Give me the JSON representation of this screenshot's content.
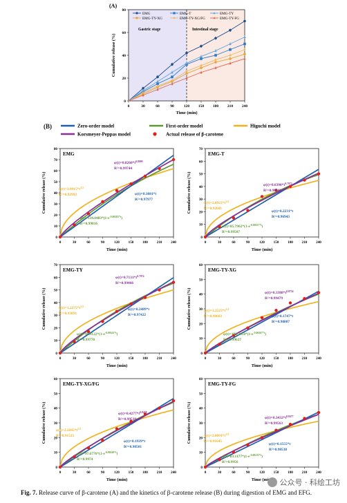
{
  "chart_data": [
    {
      "id": "A",
      "type": "line",
      "panel_label": "(A)",
      "xlabel": "Time (min)",
      "ylabel": "Cumulative release (%)",
      "x": [
        0,
        30,
        60,
        90,
        120,
        150,
        180,
        210,
        240
      ],
      "xticks": [
        0,
        30,
        60,
        90,
        120,
        150,
        180,
        210,
        240
      ],
      "ylim": [
        0,
        80
      ],
      "yticks": [
        0,
        20,
        40,
        60,
        80
      ],
      "stage_divider_x": 120,
      "regions": [
        {
          "label": "Gastric stage",
          "from": 0,
          "to": 120,
          "color": "#e7e4f8"
        },
        {
          "label": "Intestinal stage",
          "from": 120,
          "to": 240,
          "color": "#fbe9e4"
        }
      ],
      "series": [
        {
          "name": "EMG",
          "color": "#1f4e8c",
          "marker": "circle",
          "values": [
            0,
            11,
            21,
            32,
            42,
            48,
            55,
            62,
            70
          ]
        },
        {
          "name": "EMG-T",
          "color": "#2e78c8",
          "marker": "square",
          "values": [
            0,
            8,
            15,
            21,
            32,
            37,
            40,
            45,
            50
          ]
        },
        {
          "name": "EMG-TY",
          "color": "#5fa3e0",
          "marker": "triangle",
          "values": [
            0,
            9,
            17,
            25,
            33,
            39,
            44,
            50,
            56
          ]
        },
        {
          "name": "EMG-TY-XG",
          "color": "#e5a73a",
          "marker": "circle",
          "values": [
            0,
            6,
            12,
            17,
            24,
            29,
            34,
            37,
            41
          ]
        },
        {
          "name": "EMG-TY-XG/FG",
          "color": "#f0b65f",
          "marker": "diamond",
          "values": [
            0,
            7,
            13,
            18,
            26,
            31,
            36,
            40,
            45
          ]
        },
        {
          "name": "EMG-TY-FG",
          "color": "#e0684b",
          "marker": "triangle",
          "values": [
            0,
            5,
            10,
            15,
            20,
            25,
            29,
            33,
            37
          ]
        }
      ]
    },
    {
      "id": "B-EMG",
      "type": "line",
      "title": "EMG",
      "xlabel": "Time (min)",
      "ylabel": "Cumulative release (%)",
      "xticks": [
        0,
        30,
        60,
        90,
        120,
        150,
        180,
        210,
        240
      ],
      "ylim": [
        0,
        80
      ],
      "yticks": [
        0,
        10,
        20,
        30,
        40,
        50,
        60,
        70,
        80
      ],
      "actual": {
        "x": [
          0,
          30,
          60,
          90,
          120,
          150,
          180,
          210,
          240
        ],
        "y": [
          0,
          11,
          21,
          32,
          42,
          48,
          55,
          62,
          70
        ]
      },
      "models": {
        "zero_k": 0.3081,
        "first_a": 134.0483,
        "first_k": 0.00281,
        "higuchi_k": 3.9915,
        "kp_k": 0.8268,
        "kp_n": 0.8099
      },
      "equations": {
        "kp": {
          "text": "φ(t)=0.8268*t",
          "sup": "0.8099",
          "r2": "R²=0.99744"
        },
        "higuchi": {
          "text": "φ(t)=3.9915*t",
          "sup": "1/2",
          "r2": "R²=0.92992"
        },
        "zero": {
          "text": "φ(t)=0.3081*t",
          "sup": "",
          "r2": "R²=0.97977"
        },
        "first": {
          "text": "φ(t)=134.0483*(1-e",
          "sup": "-0.00281*t",
          "tail": ")",
          "r2": "R²=0.99816"
        }
      }
    },
    {
      "id": "B-EMG-T",
      "type": "line",
      "title": "EMG-T",
      "xlabel": "Time (min)",
      "ylabel": "Cumulative release (%)",
      "xticks": [
        0,
        30,
        60,
        90,
        120,
        150,
        180,
        210,
        240
      ],
      "ylim": [
        0,
        70
      ],
      "yticks": [
        0,
        10,
        20,
        30,
        40,
        50,
        60,
        70
      ],
      "actual": {
        "x": [
          0,
          30,
          60,
          90,
          120,
          150,
          180,
          210,
          240
        ],
        "y": [
          0,
          8,
          15,
          21,
          32,
          37,
          40,
          45,
          50
        ]
      },
      "models": {
        "zero_k": 0.2231,
        "first_a": 85.7962,
        "first_k": 0.00357,
        "higuchi_k": 2.8923,
        "kp_k": 0.6398,
        "kp_n": 0.7972
      },
      "equations": {
        "kp": {
          "text": "φ(t)=0.6398*t",
          "sup": "0.7972",
          "r2": "R²=0.98946"
        },
        "higuchi": {
          "text": "φ(t)=2.8923*t",
          "sup": "1/2",
          "r2": "R²=0.92601"
        },
        "zero": {
          "text": "φ(t)=0.2231*t",
          "sup": "",
          "r2": "R²=0.96943"
        },
        "first": {
          "text": "φ(t)=85.7962*(1-e",
          "sup": "-0.00357*t",
          "tail": ")",
          "r2": "R²=0.99507"
        }
      }
    },
    {
      "id": "B-EMG-TY",
      "type": "line",
      "title": "EMG-TY",
      "xlabel": "Time (min)",
      "ylabel": "Cumulative release (%)",
      "xticks": [
        0,
        30,
        60,
        90,
        120,
        150,
        180,
        210,
        240
      ],
      "ylim": [
        0,
        70
      ],
      "yticks": [
        0,
        10,
        20,
        30,
        40,
        50,
        60,
        70
      ],
      "actual": {
        "x": [
          0,
          30,
          60,
          90,
          120,
          150,
          180,
          210,
          240
        ],
        "y": [
          0,
          9,
          17,
          25,
          33,
          39,
          44,
          50,
          56
        ]
      },
      "models": {
        "zero_k": 0.2489,
        "first_a": 98.9122,
        "first_k": 0.00341,
        "higuchi_k": 3.2275,
        "kp_k": 0.7131,
        "kp_n": 0.7974
      },
      "equations": {
        "kp": {
          "text": "φ(t)=0.7131*t",
          "sup": "0.7974",
          "r2": "R²=0.99466"
        },
        "higuchi": {
          "text": "φ(t)=3.2275*t",
          "sup": "1/2",
          "r2": "R²=0.93891"
        },
        "zero": {
          "text": "φ(t)=0.2489*t",
          "sup": "",
          "r2": "R²=0.97422"
        },
        "first": {
          "text": "φ(t)=98.9122*(1-e",
          "sup": "-0.00341*t",
          "tail": ")",
          "r2": "R²=0.99778"
        }
      }
    },
    {
      "id": "B-EMG-TY-XG",
      "type": "line",
      "title": "EMG-TY-XG",
      "xlabel": "Time (min)",
      "ylabel": "Cumulative release (%)",
      "xticks": [
        0,
        30,
        60,
        90,
        120,
        150,
        180,
        210,
        240
      ],
      "ylim": [
        0,
        60
      ],
      "yticks": [
        0,
        10,
        20,
        30,
        40,
        50,
        60
      ],
      "actual": {
        "x": [
          0,
          30,
          60,
          90,
          120,
          150,
          180,
          210,
          240
        ],
        "y": [
          0,
          6,
          12,
          17,
          24,
          29,
          34,
          37,
          41
        ]
      },
      "models": {
        "zero_k": 0.1747,
        "first_a": 102.2618,
        "first_k": 0.00207,
        "higuchi_k": 2.2525,
        "kp_k": 0.3388,
        "kp_n": 0.8734
      },
      "equations": {
        "kp": {
          "text": "φ(t)=0.3388*t",
          "sup": "0.8734",
          "r2": "R²=0.99479"
        },
        "higuchi": {
          "text": "φ(t)=2.2525*t",
          "sup": "1/2",
          "r2": "R²=0.90663"
        },
        "zero": {
          "text": "φ(t)=0.1747*t",
          "sup": "",
          "r2": "R²=0.98807"
        },
        "first": {
          "text": "φ(t)=102.2618*(1-e",
          "sup": "-0.00207*t",
          "tail": ")",
          "r2": "R²=0.99627"
        }
      }
    },
    {
      "id": "B-EMG-TY-XG/FG",
      "type": "line",
      "title": "EMG-TY-XG/FG",
      "xlabel": "Time (min)",
      "ylabel": "Cumulative release (%)",
      "xticks": [
        0,
        30,
        60,
        90,
        120,
        150,
        180,
        210,
        240
      ],
      "ylim": [
        0,
        60
      ],
      "yticks": [
        0,
        10,
        20,
        30,
        40,
        50,
        60
      ],
      "actual": {
        "x": [
          0,
          30,
          60,
          90,
          120,
          150,
          180,
          210,
          240
        ],
        "y": [
          0,
          7,
          13,
          18,
          26,
          31,
          36,
          40,
          45
        ]
      },
      "models": {
        "zero_k": 0.1939,
        "first_a": 97.6776,
        "first_k": 0.00249,
        "higuchi_k": 2.5045,
        "kp_k": 0.4277,
        "kp_n": 0.8478
      },
      "equations": {
        "kp": {
          "text": "φ(t)=0.4277*t",
          "sup": "0.8478",
          "r2": "R²=0.99539"
        },
        "higuchi": {
          "text": "φ(t)=2.5045*t",
          "sup": "1/2",
          "r2": "R²=0.91525"
        },
        "zero": {
          "text": "φ(t)=0.1939*t",
          "sup": "",
          "r2": "R²=0.98501"
        },
        "first": {
          "text": "φ(t)=97.6776*(1-e",
          "sup": "-0.00249*t",
          "tail": ")",
          "r2": "R²=0.9974"
        }
      }
    },
    {
      "id": "B-EMG-TY-FG",
      "type": "line",
      "title": "EMG-TY-FG",
      "xlabel": "Time (min)",
      "ylabel": "Cumulative release (%)",
      "xticks": [
        0,
        30,
        60,
        90,
        120,
        150,
        180,
        210,
        240
      ],
      "ylim": [
        0,
        60
      ],
      "yticks": [
        0,
        10,
        20,
        30,
        40,
        50,
        60
      ],
      "actual": {
        "x": [
          0,
          30,
          60,
          90,
          120,
          150,
          180,
          210,
          240
        ],
        "y": [
          0,
          5,
          10,
          15,
          20,
          25,
          29,
          33,
          37
        ]
      },
      "models": {
        "zero_k": 0.1555,
        "first_a": 83.1177,
        "first_k": 0.00235,
        "higuchi_k": 2.0091,
        "kp_k": 0.3432,
        "kp_n": 0.8477
      },
      "equations": {
        "kp": {
          "text": "φ(t)=0.3432*t",
          "sup": "0.8477",
          "r2": "R²=0.99563"
        },
        "higuchi": {
          "text": "φ(t)=2.0091*t",
          "sup": "1/2",
          "r2": "R²=0.91645"
        },
        "zero": {
          "text": "φ(t)=0.1555*t",
          "sup": "",
          "r2": "R²=0.98538"
        },
        "first": {
          "text": "φ(t)=83.1177*(1-e",
          "sup": "-0.00235*t",
          "tail": ")",
          "r2": "R²=0.9956"
        }
      }
    }
  ],
  "panel_b": {
    "panel_label": "(B)",
    "legend": [
      {
        "key": "zero",
        "label": "Zero-order model",
        "color": "#1f5fb0",
        "kind": "line"
      },
      {
        "key": "first",
        "label": "First-order model",
        "color": "#5c9a2e",
        "kind": "line"
      },
      {
        "key": "higuchi",
        "label": "Higuchi model",
        "color": "#f2b21e",
        "kind": "line"
      },
      {
        "key": "kp",
        "label": "Korsmeyer-Peppas model",
        "color": "#8a2c9a",
        "kind": "line"
      },
      {
        "key": "actual",
        "label": "Actual release of β-carotene",
        "color": "#e0201c",
        "kind": "dot"
      }
    ]
  },
  "caption": {
    "prefix": "Fig. 7.",
    "text": "Release curve of β-carotene (A) and the kinetics of β-carotene release (B) during digestion of EMG and EFG."
  },
  "watermark": {
    "text": "公众号 · 科绘工坊"
  }
}
